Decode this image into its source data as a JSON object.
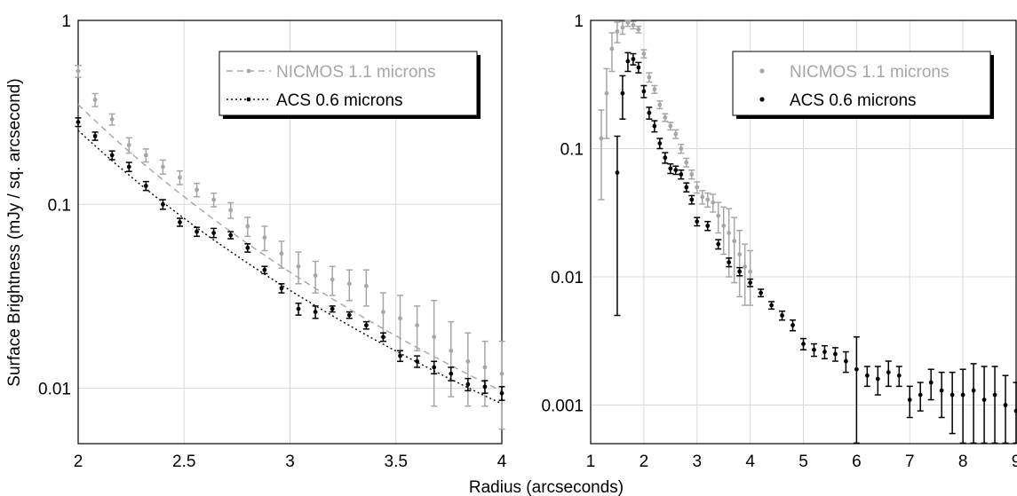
{
  "figure": {
    "xlabel": "Radius (arcseconds)",
    "ylabel": "Surface Brightness (mJy / sq. arcsecond)"
  },
  "colors": {
    "nicmos": "#a6a6a6",
    "acs": "#000000",
    "grid": "#d9d9d9"
  },
  "chart_data": [
    {
      "type": "scatter",
      "panel": "left",
      "xlim": [
        2,
        4
      ],
      "ylim": [
        0.005,
        1
      ],
      "yscale": "log",
      "grid": true,
      "legend_position": "top-right",
      "x_ticks": [
        "2",
        "2.5",
        "3",
        "3.5",
        "4"
      ],
      "y_ticks": [
        "1",
        "0.1",
        "0.01"
      ],
      "series": [
        {
          "name": "NICMOS 1.1 microns",
          "color": "#a6a6a6",
          "fit_line": "dashed",
          "x": [
            2.0,
            2.08,
            2.16,
            2.24,
            2.32,
            2.4,
            2.48,
            2.56,
            2.64,
            2.72,
            2.8,
            2.88,
            2.96,
            3.04,
            3.12,
            3.2,
            3.28,
            3.36,
            3.44,
            3.52,
            3.6,
            3.68,
            3.76,
            3.84,
            3.92,
            4.0
          ],
          "y": [
            0.53,
            0.37,
            0.29,
            0.21,
            0.185,
            0.16,
            0.14,
            0.12,
            0.106,
            0.093,
            0.076,
            0.066,
            0.054,
            0.046,
            0.041,
            0.039,
            0.037,
            0.036,
            0.026,
            0.024,
            0.022,
            0.019,
            0.016,
            0.014,
            0.013,
            0.012
          ],
          "err": [
            0.04,
            0.03,
            0.02,
            0.02,
            0.015,
            0.014,
            0.012,
            0.01,
            0.009,
            0.009,
            0.009,
            0.01,
            0.009,
            0.009,
            0.008,
            0.007,
            0.007,
            0.008,
            0.007,
            0.008,
            0.006,
            0.011,
            0.007,
            0.006,
            0.005,
            0.006
          ]
        },
        {
          "name": "ACS 0.6 microns",
          "color": "#000000",
          "fit_line": "dotted",
          "x": [
            2.0,
            2.08,
            2.16,
            2.24,
            2.32,
            2.4,
            2.48,
            2.56,
            2.64,
            2.72,
            2.8,
            2.88,
            2.96,
            3.04,
            3.12,
            3.2,
            3.28,
            3.36,
            3.44,
            3.52,
            3.6,
            3.68,
            3.76,
            3.84,
            3.92,
            4.0
          ],
          "y": [
            0.28,
            0.235,
            0.185,
            0.16,
            0.126,
            0.1,
            0.08,
            0.071,
            0.07,
            0.068,
            0.058,
            0.044,
            0.035,
            0.027,
            0.026,
            0.027,
            0.025,
            0.022,
            0.019,
            0.015,
            0.014,
            0.013,
            0.012,
            0.0105,
            0.0102,
            0.0094
          ],
          "err": [
            0.015,
            0.012,
            0.01,
            0.009,
            0.007,
            0.006,
            0.004,
            0.004,
            0.004,
            0.003,
            0.003,
            0.002,
            0.002,
            0.002,
            0.002,
            0.001,
            0.001,
            0.001,
            0.001,
            0.001,
            0.001,
            0.001,
            0.001,
            0.0008,
            0.0008,
            0.0008
          ]
        }
      ]
    },
    {
      "type": "scatter",
      "panel": "right",
      "xlim": [
        1,
        9
      ],
      "ylim": [
        0.0005,
        1
      ],
      "yscale": "log",
      "grid": true,
      "legend_position": "top-right",
      "x_ticks": [
        "1",
        "2",
        "3",
        "4",
        "5",
        "6",
        "7",
        "8",
        "9"
      ],
      "y_ticks": [
        "1",
        "0.1",
        "0.01",
        "0.001"
      ],
      "series": [
        {
          "name": "NICMOS 1.1 microns",
          "color": "#a6a6a6",
          "x": [
            1.2,
            1.3,
            1.4,
            1.5,
            1.6,
            1.7,
            1.8,
            1.9,
            2.0,
            2.1,
            2.2,
            2.3,
            2.4,
            2.5,
            2.6,
            2.7,
            2.8,
            2.9,
            3.0,
            3.1,
            3.2,
            3.3,
            3.4,
            3.5,
            3.6,
            3.7,
            3.8,
            3.9,
            4.0
          ],
          "y": [
            0.12,
            0.27,
            0.6,
            0.82,
            0.88,
            0.96,
            0.92,
            0.85,
            0.55,
            0.36,
            0.29,
            0.22,
            0.175,
            0.15,
            0.13,
            0.1,
            0.078,
            0.063,
            0.05,
            0.042,
            0.04,
            0.038,
            0.03,
            0.025,
            0.022,
            0.019,
            0.015,
            0.012,
            0.011
          ],
          "err": [
            0.08,
            0.15,
            0.2,
            0.15,
            0.1,
            0.06,
            0.06,
            0.05,
            0.04,
            0.03,
            0.02,
            0.015,
            0.012,
            0.01,
            0.01,
            0.008,
            0.006,
            0.005,
            0.005,
            0.005,
            0.005,
            0.006,
            0.008,
            0.01,
            0.012,
            0.01,
            0.008,
            0.006,
            0.005
          ]
        },
        {
          "name": "ACS 0.6 microns",
          "color": "#000000",
          "x": [
            1.5,
            1.6,
            1.7,
            1.8,
            1.9,
            2.0,
            2.1,
            2.2,
            2.3,
            2.4,
            2.5,
            2.6,
            2.7,
            2.8,
            2.9,
            3.0,
            3.2,
            3.4,
            3.6,
            3.8,
            4.0,
            4.2,
            4.4,
            4.6,
            4.8,
            5.0,
            5.2,
            5.4,
            5.6,
            5.8,
            6.0,
            6.2,
            6.4,
            6.6,
            6.8,
            7.0,
            7.2,
            7.4,
            7.6,
            7.8,
            8.0,
            8.2,
            8.4,
            8.6,
            8.8,
            9.0
          ],
          "y": [
            0.065,
            0.27,
            0.48,
            0.5,
            0.43,
            0.28,
            0.19,
            0.15,
            0.11,
            0.085,
            0.07,
            0.068,
            0.063,
            0.05,
            0.04,
            0.027,
            0.025,
            0.018,
            0.013,
            0.011,
            0.009,
            0.0075,
            0.006,
            0.005,
            0.0042,
            0.003,
            0.0027,
            0.0026,
            0.0025,
            0.0022,
            0.0019,
            0.0017,
            0.0016,
            0.0018,
            0.0017,
            0.0011,
            0.0012,
            0.0015,
            0.0013,
            0.0012,
            0.0012,
            0.0013,
            0.0011,
            0.0012,
            0.001,
            0.0009
          ],
          "err": [
            0.06,
            0.1,
            0.08,
            0.05,
            0.04,
            0.03,
            0.02,
            0.015,
            0.01,
            0.008,
            0.006,
            0.005,
            0.005,
            0.004,
            0.003,
            0.002,
            0.002,
            0.0015,
            0.001,
            0.0008,
            0.0006,
            0.0005,
            0.0004,
            0.0004,
            0.0004,
            0.0003,
            0.0003,
            0.0003,
            0.0003,
            0.0004,
            0.0015,
            0.0003,
            0.0004,
            0.0004,
            0.0003,
            0.0003,
            0.0003,
            0.0004,
            0.0005,
            0.0006,
            0.0007,
            0.0008,
            0.0009,
            0.0008,
            0.0007,
            0.0006
          ]
        }
      ]
    }
  ]
}
